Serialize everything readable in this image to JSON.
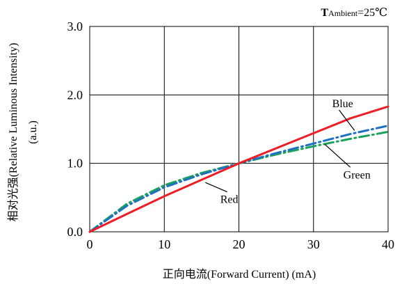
{
  "chart_data": {
    "type": "line",
    "annotation": {
      "prefix": "T",
      "subscript": "Ambient",
      "suffix": "=25℃"
    },
    "xlabel": "正向电流(Forward Current) (mA)",
    "ylabel_main": "相对光强(Relative Luminous Intensity)",
    "ylabel_unit": "(a.u.)",
    "xlim": [
      0,
      40
    ],
    "ylim": [
      0,
      3
    ],
    "x_ticks": [
      0,
      10,
      20,
      30,
      40
    ],
    "x_tick_labels": [
      "0",
      "10",
      "20",
      "30",
      "40"
    ],
    "y_ticks": [
      0,
      1,
      2,
      3
    ],
    "y_tick_labels": [
      "0.0",
      "1.0",
      "2.0",
      "3.0"
    ],
    "grid": true,
    "series": [
      {
        "name": "Red",
        "color": "#ee1c25",
        "style": "solid",
        "x": [
          0,
          5,
          10,
          15,
          20,
          25,
          30,
          35,
          40
        ],
        "y": [
          0,
          0.26,
          0.52,
          0.76,
          1.0,
          1.22,
          1.44,
          1.66,
          1.83
        ]
      },
      {
        "name": "Blue",
        "color": "#1f6fc4",
        "style": "dashdot",
        "x": [
          0,
          5,
          10,
          15,
          20,
          25,
          30,
          35,
          40
        ],
        "y": [
          0,
          0.38,
          0.65,
          0.84,
          1.0,
          1.15,
          1.29,
          1.43,
          1.55
        ]
      },
      {
        "name": "Green",
        "color": "#1aa35a",
        "style": "dashdot",
        "x": [
          0,
          5,
          10,
          15,
          20,
          25,
          30,
          35,
          40
        ],
        "y": [
          0,
          0.41,
          0.68,
          0.86,
          1.0,
          1.13,
          1.25,
          1.36,
          1.46
        ]
      }
    ],
    "labels": [
      {
        "text": "Blue",
        "series": "Blue",
        "x": 32.5,
        "y": 1.82,
        "leader_to": [
          35.5,
          1.48
        ]
      },
      {
        "text": "Green",
        "series": "Green",
        "x": 34,
        "y": 0.78,
        "leader_to": [
          31.5,
          1.28
        ]
      },
      {
        "text": "Red",
        "series": "Red",
        "x": 17.5,
        "y": 0.42,
        "leader_to": [
          15.5,
          0.72
        ]
      }
    ]
  }
}
